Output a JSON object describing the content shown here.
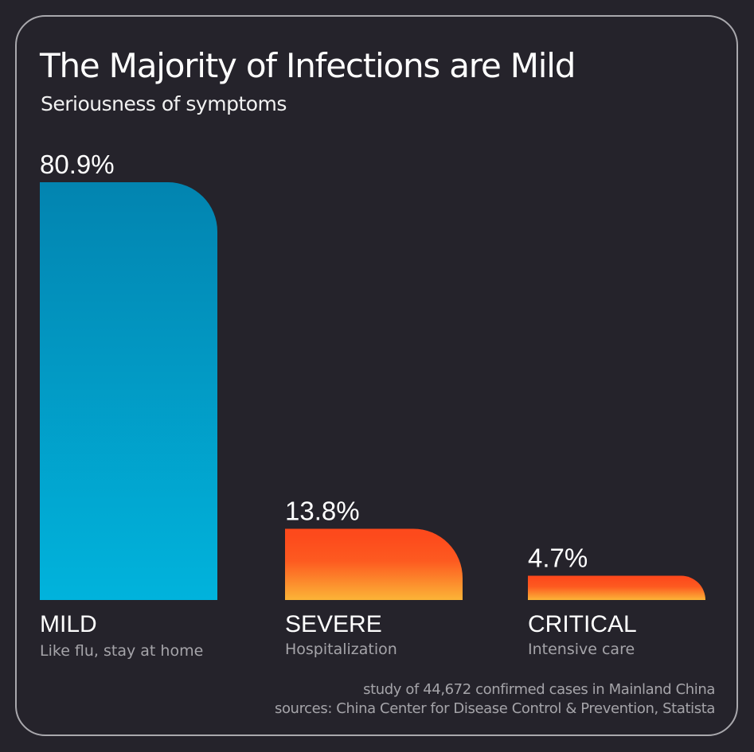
{
  "chart_data": {
    "type": "bar",
    "title": "The Majority of Infections are Mild",
    "subtitle": "Seriousness of symptoms",
    "categories": [
      "MILD",
      "SEVERE",
      "CRITICAL"
    ],
    "descriptions": [
      "Like flu, stay at home",
      "Hospitalization",
      "Intensive care"
    ],
    "values": [
      80.9,
      13.8,
      4.7
    ],
    "value_labels": [
      "80.9%",
      "13.8%",
      "4.7%"
    ],
    "unit": "%",
    "xlabel": "",
    "ylabel": "",
    "ylim": [
      0,
      80.9
    ],
    "grid": false,
    "legend": "none",
    "colors": {
      "mild_top": "#0284b0",
      "mild_bottom": "#01b3dc",
      "severe_top": "#fd4a1c",
      "severe_bottom": "#fcb437"
    },
    "footnotes": [
      "study of 44,672 confirmed cases in Mainland China",
      "sources: China Center for Disease Control & Prevention, Statista"
    ]
  }
}
